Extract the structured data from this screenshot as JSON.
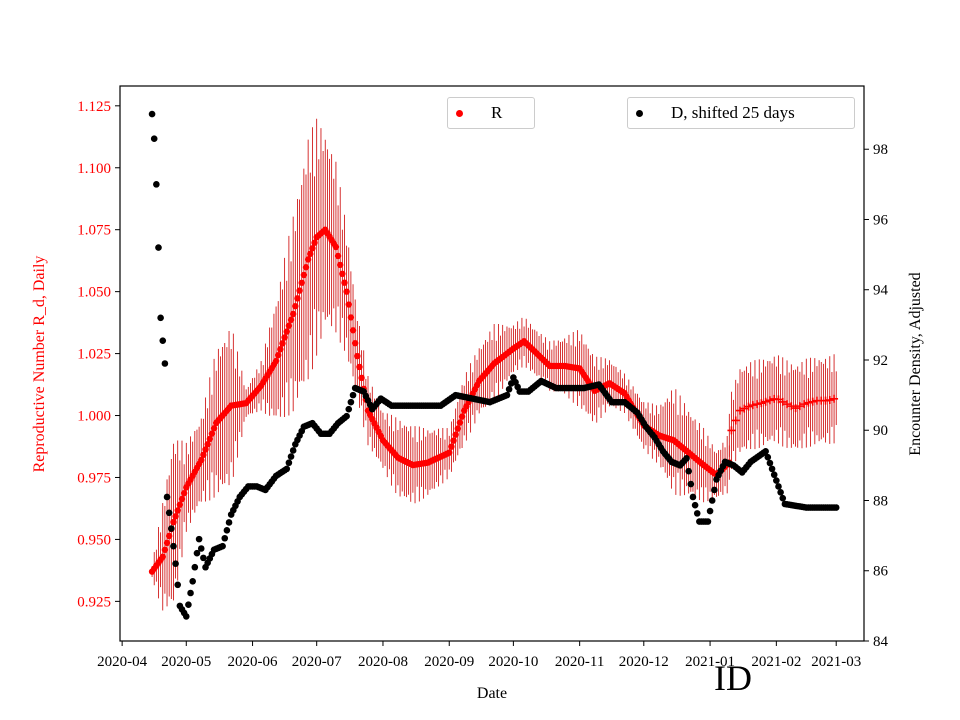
{
  "colors": {
    "r_series": "#ff0000",
    "r_error": "#cc0000",
    "d_series": "#000000",
    "left_axis": "#ff0000",
    "right_axis": "#000000"
  },
  "stamp": "ID",
  "legend": {
    "r_label": "R",
    "d_label": "D, shifted 25 days"
  },
  "chart_data": {
    "type": "scatter",
    "xlabel": "Date",
    "ylabel_left": "Reproductive Number R_d, Daily",
    "ylabel_right": "Encounter Density, Adjusted",
    "x_ticks": [
      "2020-04",
      "2020-05",
      "2020-06",
      "2020-07",
      "2020-08",
      "2020-09",
      "2020-10",
      "2020-11",
      "2020-12",
      "2021-01",
      "2021-02",
      "2021-03"
    ],
    "xlim": [
      "2020-03-31",
      "2021-03-14"
    ],
    "ylim_left": [
      0.909,
      1.133
    ],
    "yticks_left": [
      "0.925",
      "0.950",
      "0.975",
      "1.000",
      "1.025",
      "1.050",
      "1.075",
      "1.100",
      "1.125"
    ],
    "ylim_right": [
      84.0,
      99.8
    ],
    "yticks_right": [
      "84",
      "86",
      "88",
      "90",
      "92",
      "94",
      "96",
      "98"
    ],
    "grid": false,
    "series": [
      {
        "name": "R",
        "axis": "left",
        "marker": "dot",
        "x": [
          "2020-04-15",
          "2020-04-20",
          "2020-04-25",
          "2020-05-01",
          "2020-05-08",
          "2020-05-15",
          "2020-05-22",
          "2020-05-29",
          "2020-06-05",
          "2020-06-12",
          "2020-06-20",
          "2020-06-27",
          "2020-07-01",
          "2020-07-05",
          "2020-07-10",
          "2020-07-15",
          "2020-07-20",
          "2020-07-25",
          "2020-08-01",
          "2020-08-08",
          "2020-08-15",
          "2020-08-22",
          "2020-09-01",
          "2020-09-08",
          "2020-09-15",
          "2020-09-22",
          "2020-10-01",
          "2020-10-06",
          "2020-10-12",
          "2020-10-18",
          "2020-10-25",
          "2020-11-01",
          "2020-11-08",
          "2020-11-15",
          "2020-11-22",
          "2020-12-01",
          "2020-12-08",
          "2020-12-15",
          "2020-12-22",
          "2020-12-29",
          "2021-01-04",
          "2021-01-10"
        ],
        "values": [
          0.937,
          0.943,
          0.957,
          0.971,
          0.982,
          0.997,
          1.004,
          1.005,
          1.012,
          1.022,
          1.041,
          1.063,
          1.072,
          1.075,
          1.068,
          1.05,
          1.024,
          1.002,
          0.99,
          0.983,
          0.98,
          0.981,
          0.985,
          1.002,
          1.014,
          1.021,
          1.027,
          1.03,
          1.025,
          1.02,
          1.02,
          1.019,
          1.01,
          1.013,
          1.009,
          0.996,
          0.992,
          0.99,
          0.985,
          0.98,
          0.976,
          0.981
        ],
        "error": [
          0.003,
          0.022,
          0.035,
          0.018,
          0.018,
          0.03,
          0.033,
          0.006,
          0.01,
          0.025,
          0.04,
          0.05,
          0.048,
          0.04,
          0.035,
          0.026,
          0.018,
          0.014,
          0.012,
          0.016,
          0.016,
          0.014,
          0.01,
          0.014,
          0.014,
          0.016,
          0.01,
          0.01,
          0.01,
          0.01,
          0.012,
          0.016,
          0.014,
          0.01,
          0.008,
          0.01,
          0.012,
          0.022,
          0.018,
          0.015,
          0.01,
          0.012
        ]
      },
      {
        "name": "R",
        "axis": "left",
        "marker": "plus",
        "x": [
          "2021-01-10",
          "2021-01-15",
          "2021-01-20",
          "2021-01-25",
          "2021-02-01",
          "2021-02-05",
          "2021-02-10",
          "2021-02-15",
          "2021-02-20",
          "2021-02-25",
          "2021-03-01"
        ],
        "values": [
          0.992,
          1.002,
          1.004,
          1.005,
          1.007,
          1.005,
          1.003,
          1.005,
          1.006,
          1.006,
          1.007
        ],
        "error": [
          0.015,
          0.018,
          0.018,
          0.018,
          0.018,
          0.018,
          0.018,
          0.018,
          0.018,
          0.018,
          0.018
        ]
      },
      {
        "name": "D, shifted 25 days",
        "axis": "right",
        "marker": "dot",
        "x": [
          "2020-04-15",
          "2020-04-16",
          "2020-04-17",
          "2020-04-18",
          "2020-04-19",
          "2020-04-21",
          "2020-04-22",
          "2020-04-24",
          "2020-04-26",
          "2020-04-28",
          "2020-05-01",
          "2020-05-04",
          "2020-05-07",
          "2020-05-10",
          "2020-05-14",
          "2020-05-18",
          "2020-05-22",
          "2020-05-26",
          "2020-05-30",
          "2020-06-03",
          "2020-06-07",
          "2020-06-12",
          "2020-06-17",
          "2020-06-21",
          "2020-06-25",
          "2020-06-29",
          "2020-07-03",
          "2020-07-07",
          "2020-07-11",
          "2020-07-15",
          "2020-07-19",
          "2020-07-23",
          "2020-07-27",
          "2020-07-31",
          "2020-08-05",
          "2020-08-12",
          "2020-08-20",
          "2020-08-28",
          "2020-09-04",
          "2020-09-12",
          "2020-09-20",
          "2020-09-28",
          "2020-10-01",
          "2020-10-04",
          "2020-10-08",
          "2020-10-14",
          "2020-10-21",
          "2020-10-28",
          "2020-11-03",
          "2020-11-10",
          "2020-11-16",
          "2020-11-22",
          "2020-11-28",
          "2020-12-02",
          "2020-12-06",
          "2020-12-10",
          "2020-12-14",
          "2020-12-18",
          "2020-12-21",
          "2020-12-24",
          "2020-12-27",
          "2020-12-31",
          "2021-01-04",
          "2021-01-08",
          "2021-01-12",
          "2021-01-16",
          "2021-01-20",
          "2021-01-27",
          "2021-02-05",
          "2021-02-15",
          "2021-02-25",
          "2021-03-01"
        ],
        "values": [
          99.0,
          98.3,
          97.0,
          95.2,
          93.2,
          91.9,
          88.1,
          87.2,
          86.2,
          85.0,
          84.7,
          85.7,
          86.9,
          86.1,
          86.6,
          86.7,
          87.6,
          88.1,
          88.4,
          88.4,
          88.3,
          88.7,
          88.9,
          89.6,
          90.1,
          90.2,
          89.9,
          89.9,
          90.2,
          90.4,
          91.2,
          91.1,
          90.6,
          90.9,
          90.7,
          90.7,
          90.7,
          90.7,
          91.0,
          90.9,
          90.8,
          91.0,
          91.5,
          91.1,
          91.1,
          91.4,
          91.2,
          91.2,
          91.2,
          91.3,
          90.8,
          90.8,
          90.5,
          90.1,
          89.8,
          89.4,
          89.1,
          89.0,
          89.2,
          88.1,
          87.4,
          87.4,
          88.6,
          89.1,
          89.0,
          88.8,
          89.1,
          89.4,
          87.9,
          87.8,
          87.8,
          87.8
        ]
      }
    ]
  }
}
